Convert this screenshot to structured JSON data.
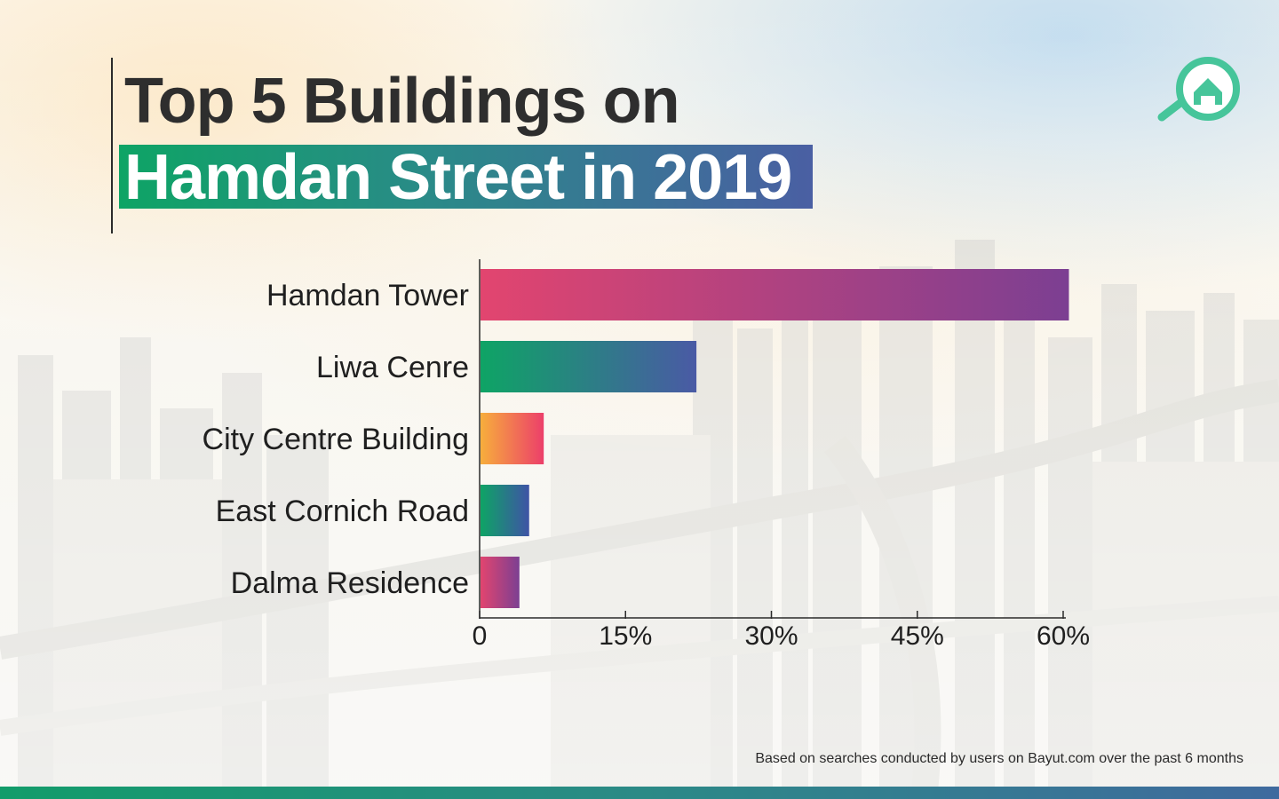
{
  "title": {
    "line1": "Top 5 Buildings on",
    "line2": "Hamdan Street in 2019"
  },
  "logo": {
    "icon": "house-search-icon",
    "color": "#46c59a"
  },
  "source_note": "Based on searches conducted by users on Bayut.com over the past 6 months",
  "colors": {
    "bar_1": [
      "#e2456f",
      "#7c3f92"
    ],
    "bar_2": [
      "#0ea465",
      "#4a5aa5"
    ],
    "bar_3": [
      "#f7ae3c",
      "#ec3f6a"
    ],
    "bar_4": [
      "#0ea465",
      "#3f53a6"
    ],
    "bar_5": [
      "#e2456f",
      "#7c3f92"
    ],
    "footer_bar": [
      "#129c6a",
      "#3f6a9e"
    ]
  },
  "chart_data": {
    "type": "bar",
    "orientation": "horizontal",
    "categories": [
      "Hamdan Tower",
      "Liwa Cenre",
      "City Centre Building",
      "East Cornich Road",
      "Dalma Residence"
    ],
    "values": [
      60.5,
      22.2,
      6.5,
      5.0,
      4.0
    ],
    "xlim": [
      0,
      60
    ],
    "xticks": [
      0,
      15,
      30,
      45,
      60
    ],
    "xtick_labels": [
      "0",
      "15%",
      "30%",
      "45%",
      "60%"
    ],
    "grid": false,
    "legend": "none"
  }
}
